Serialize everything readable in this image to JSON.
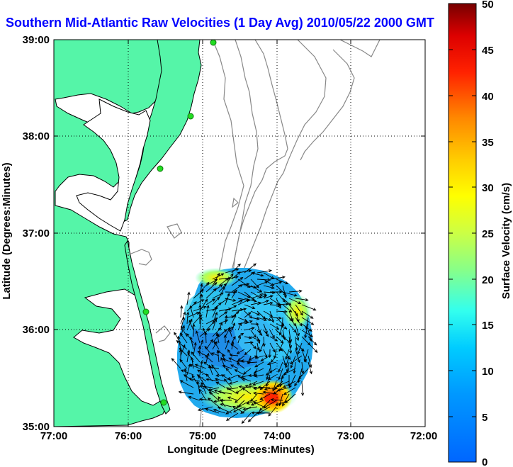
{
  "title": "Southern Mid-Atlantic Raw Velocities (1 Day Avg) 2010/05/22 2000 GMT",
  "map": {
    "xlabel": "Longitude (Degrees:Minutes)",
    "ylabel": "Latitude (Degrees:Minutes)",
    "x_ticks": [
      "77:00",
      "76:00",
      "75:00",
      "74:00",
      "73:00",
      "72:00"
    ],
    "y_ticks": [
      "39:00",
      "38:00",
      "37:00",
      "36:00",
      "35:00"
    ],
    "colors": {
      "land": "#55f5a8",
      "coast_line": "#000000",
      "bathymetry": "#888888",
      "site_marker": "#22dd22",
      "grid": "#000000"
    }
  },
  "colorbar": {
    "label": "Surface Velocity (cm/s)",
    "ticks": [
      "50",
      "45",
      "40",
      "35",
      "30",
      "25",
      "20",
      "15",
      "10",
      "5",
      "0"
    ],
    "min": 0,
    "max": 50,
    "colormap": "jet"
  },
  "chart_data": {
    "type": "heatmap",
    "title": "Southern Mid-Atlantic Raw Velocities (1 Day Avg) 2010/05/22 2000 GMT",
    "xlabel": "Longitude (Degrees:Minutes)",
    "ylabel": "Latitude (Degrees:Minutes)",
    "xlim": [
      -77,
      -72
    ],
    "ylim": [
      35,
      39
    ],
    "colorbar": {
      "label": "Surface Velocity (cm/s)",
      "min": 0,
      "max": 50
    },
    "field_region": {
      "center_lon": -74.6,
      "center_lat": 35.9,
      "approx_radius_deg": 0.8
    },
    "notable_values": [
      {
        "lon": -74.2,
        "lat": 35.3,
        "speed_cm_s": 42
      },
      {
        "lon": -74.0,
        "lat": 35.5,
        "speed_cm_s": 30
      },
      {
        "lon": -74.6,
        "lat": 35.2,
        "speed_cm_s": 25
      },
      {
        "lon": -74.6,
        "lat": 35.9,
        "speed_cm_s": 8
      },
      {
        "lon": -74.9,
        "lat": 36.4,
        "speed_cm_s": 22
      }
    ],
    "sites": [
      {
        "lon": -75.1,
        "lat": 38.98
      },
      {
        "lon": -75.27,
        "lat": 38.22
      },
      {
        "lon": -75.68,
        "lat": 37.72
      },
      {
        "lon": -75.68,
        "lat": 36.18
      },
      {
        "lon": -75.55,
        "lat": 35.25
      }
    ]
  }
}
